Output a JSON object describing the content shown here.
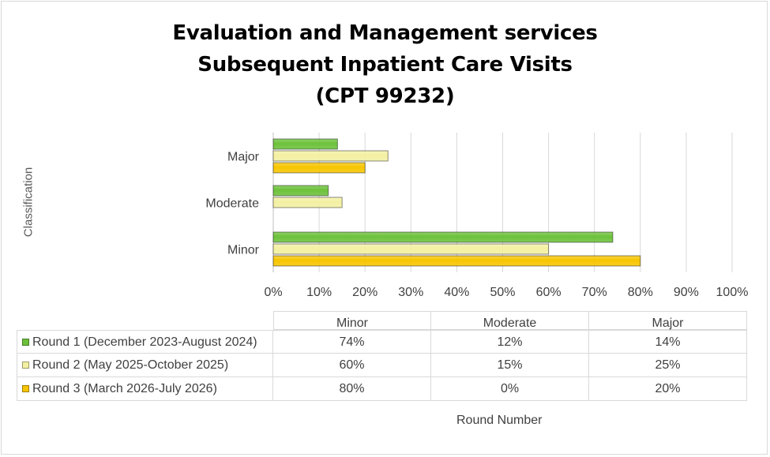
{
  "chart_data": {
    "type": "bar",
    "orientation": "horizontal",
    "title_lines": [
      "Evaluation and Management services",
      "Subsequent Inpatient Care Visits",
      "(CPT 99232)"
    ],
    "categories": [
      "Minor",
      "Moderate",
      "Major"
    ],
    "series": [
      {
        "name": "Round 1 (December 2023-August 2024)",
        "values": [
          74,
          12,
          14
        ],
        "labels": [
          "74%",
          "12%",
          "14%"
        ],
        "color": "#6cc13a"
      },
      {
        "name": "Round 2 (May 2025-October 2025)",
        "values": [
          60,
          15,
          25
        ],
        "labels": [
          "60%",
          "15%",
          "25%"
        ],
        "color": "#f3f0a2"
      },
      {
        "name": "Round 3 (March 2026-July 2026)",
        "values": [
          80,
          0,
          20
        ],
        "labels": [
          "80%",
          "0%",
          "20%"
        ],
        "color": "#f7c500"
      }
    ],
    "xlim": [
      0,
      100
    ],
    "x_ticks": [
      "0%",
      "10%",
      "20%",
      "30%",
      "40%",
      "50%",
      "60%",
      "70%",
      "80%",
      "90%",
      "100%"
    ],
    "ylabel": "Classification",
    "xlabel": "Round Number",
    "grid": "vertical",
    "legend": "data table below chart"
  }
}
